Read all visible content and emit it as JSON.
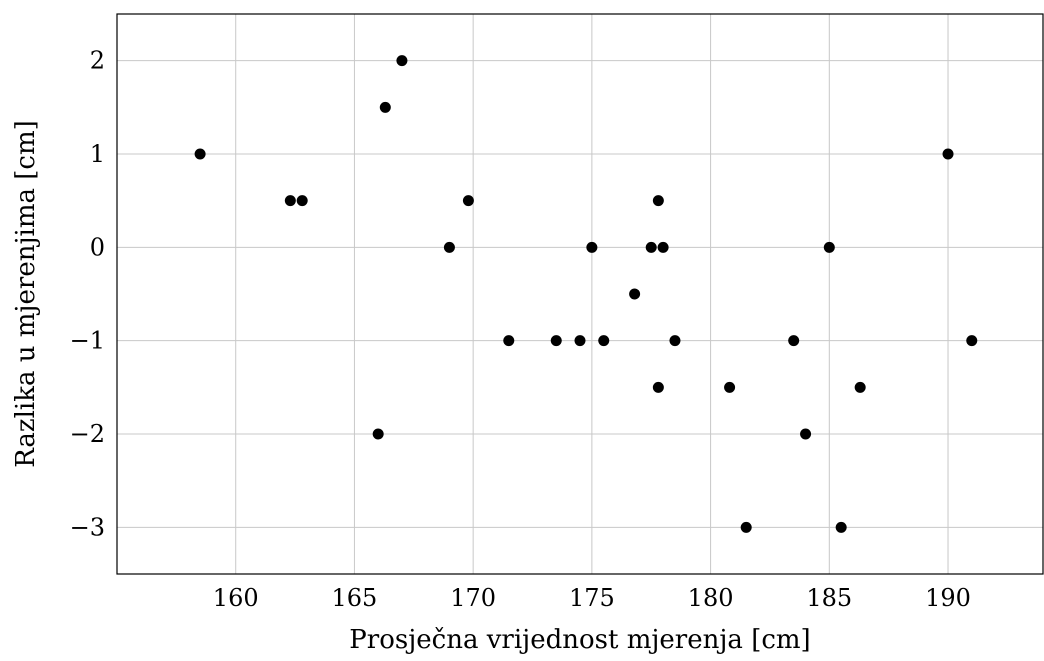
{
  "chart_data": {
    "type": "scatter",
    "title": "",
    "xlabel": "Prosječna vrijednost mjerenja [cm]",
    "ylabel": "Razlika u mjerenjima [cm]",
    "xlim": [
      155,
      194
    ],
    "ylim": [
      -3.5,
      2.5
    ],
    "xticks": [
      160,
      165,
      170,
      175,
      180,
      185,
      190
    ],
    "xtick_labels": [
      "160",
      "165",
      "170",
      "175",
      "180",
      "185",
      "190"
    ],
    "yticks": [
      -3,
      -2,
      -1,
      0,
      1,
      2
    ],
    "ytick_labels": [
      "−3",
      "−2",
      "−1",
      "0",
      "1",
      "2"
    ],
    "grid": true,
    "legend": "none",
    "marker_color": "#000000",
    "points": [
      {
        "x": 158.5,
        "y": 1
      },
      {
        "x": 162.3,
        "y": 0.5
      },
      {
        "x": 162.8,
        "y": 0.5
      },
      {
        "x": 166.0,
        "y": -2
      },
      {
        "x": 166.3,
        "y": 1.5
      },
      {
        "x": 167.0,
        "y": 2
      },
      {
        "x": 169.0,
        "y": 0
      },
      {
        "x": 169.8,
        "y": 0.5
      },
      {
        "x": 171.5,
        "y": -1
      },
      {
        "x": 173.5,
        "y": -1
      },
      {
        "x": 174.5,
        "y": -1
      },
      {
        "x": 175.0,
        "y": 0
      },
      {
        "x": 175.5,
        "y": -1
      },
      {
        "x": 176.8,
        "y": -0.5
      },
      {
        "x": 177.5,
        "y": 0
      },
      {
        "x": 177.8,
        "y": 0.5
      },
      {
        "x": 177.8,
        "y": -1.5
      },
      {
        "x": 178.0,
        "y": 0
      },
      {
        "x": 178.5,
        "y": -1
      },
      {
        "x": 180.8,
        "y": -1.5
      },
      {
        "x": 181.5,
        "y": -3
      },
      {
        "x": 183.5,
        "y": -1
      },
      {
        "x": 184.0,
        "y": -2
      },
      {
        "x": 185.0,
        "y": 0
      },
      {
        "x": 185.5,
        "y": -3
      },
      {
        "x": 186.3,
        "y": -1.5
      },
      {
        "x": 190.0,
        "y": 1
      },
      {
        "x": 191.0,
        "y": -1
      }
    ]
  }
}
